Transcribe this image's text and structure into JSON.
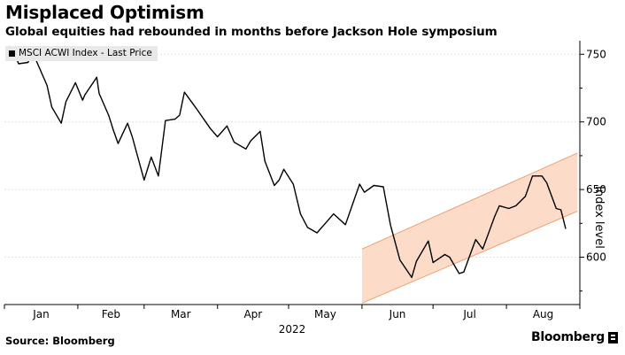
{
  "header": {
    "title": "Misplaced Optimism",
    "subtitle": "Global equities had rebounded in months before Jackson Hole symposium"
  },
  "footer": {
    "source": "Source: Bloomberg",
    "brand": "Bloomberg"
  },
  "colors": {
    "line": "#000000",
    "channel_fill": "#fbd6bf",
    "channel_stroke": "#f0a070",
    "axis": "#000000"
  },
  "chart_data": {
    "type": "line",
    "title": "Misplaced Optimism",
    "subtitle": "Global equities had rebounded in months before Jackson Hole symposium",
    "ylabel": "Index level",
    "xlabel": "2022",
    "year_label": "2022",
    "legend": "MSCI ACWI Index - Last Price",
    "legend_position": "top-left",
    "y_axis_side": "right",
    "ylim": [
      565,
      760
    ],
    "yticks": [
      {
        "value": 600,
        "label": "600"
      },
      {
        "value": 650,
        "label": "650"
      },
      {
        "value": 700,
        "label": "700"
      },
      {
        "value": 750,
        "label": "750"
      }
    ],
    "x_categories": [
      "Jan",
      "Feb",
      "Mar",
      "Apr",
      "May",
      "Jun",
      "Jul",
      "Aug"
    ],
    "series": [
      {
        "name": "MSCI ACWI Index - Last Price",
        "x": [
          "2022-01-03",
          "2022-01-05",
          "2022-01-07",
          "2022-01-11",
          "2022-01-13",
          "2022-01-14",
          "2022-01-19",
          "2022-01-21",
          "2022-01-25",
          "2022-01-27",
          "2022-01-31",
          "2022-02-03",
          "2022-02-04",
          "2022-02-09",
          "2022-02-10",
          "2022-02-14",
          "2022-02-16",
          "2022-02-18",
          "2022-02-22",
          "2022-02-24",
          "2022-03-01",
          "2022-03-04",
          "2022-03-07",
          "2022-03-10",
          "2022-03-14",
          "2022-03-16",
          "2022-03-18",
          "2022-03-23",
          "2022-03-29",
          "2022-04-01",
          "2022-04-05",
          "2022-04-08",
          "2022-04-13",
          "2022-04-15",
          "2022-04-19",
          "2022-04-21",
          "2022-04-25",
          "2022-04-27",
          "2022-04-29",
          "2022-05-03",
          "2022-05-06",
          "2022-05-09",
          "2022-05-13",
          "2022-05-17",
          "2022-05-20",
          "2022-05-25",
          "2022-05-31",
          "2022-06-02",
          "2022-06-06",
          "2022-06-10",
          "2022-06-13",
          "2022-06-17",
          "2022-06-22",
          "2022-06-24",
          "2022-06-29",
          "2022-07-01",
          "2022-07-06",
          "2022-07-08",
          "2022-07-12",
          "2022-07-14",
          "2022-07-19",
          "2022-07-22",
          "2022-07-27",
          "2022-07-29",
          "2022-08-02",
          "2022-08-05",
          "2022-08-09",
          "2022-08-12",
          "2022-08-16",
          "2022-08-18",
          "2022-08-22",
          "2022-08-24",
          "2022-08-26"
        ],
        "values": [
          756,
          752,
          743,
          744,
          754,
          747,
          727,
          711,
          699,
          715,
          729,
          716,
          720,
          733,
          721,
          705,
          694,
          684,
          699,
          689,
          657,
          674,
          660,
          701,
          702,
          705,
          722,
          710,
          695,
          689,
          697,
          685,
          680,
          686,
          693,
          671,
          653,
          657,
          665,
          654,
          632,
          622,
          618,
          626,
          632,
          624,
          654,
          648,
          653,
          652,
          624,
          598,
          585,
          597,
          612,
          596,
          602,
          600,
          588,
          589,
          613,
          606,
          630,
          638,
          636,
          638,
          645,
          660,
          660,
          655,
          636,
          635,
          621
        ]
      }
    ],
    "trend_channel": {
      "upper": [
        {
          "x": "2022-06-01",
          "y": 606
        },
        {
          "x": "2022-08-31",
          "y": 677
        }
      ],
      "lower": [
        {
          "x": "2022-06-01",
          "y": 566
        },
        {
          "x": "2022-08-31",
          "y": 634
        }
      ]
    }
  }
}
